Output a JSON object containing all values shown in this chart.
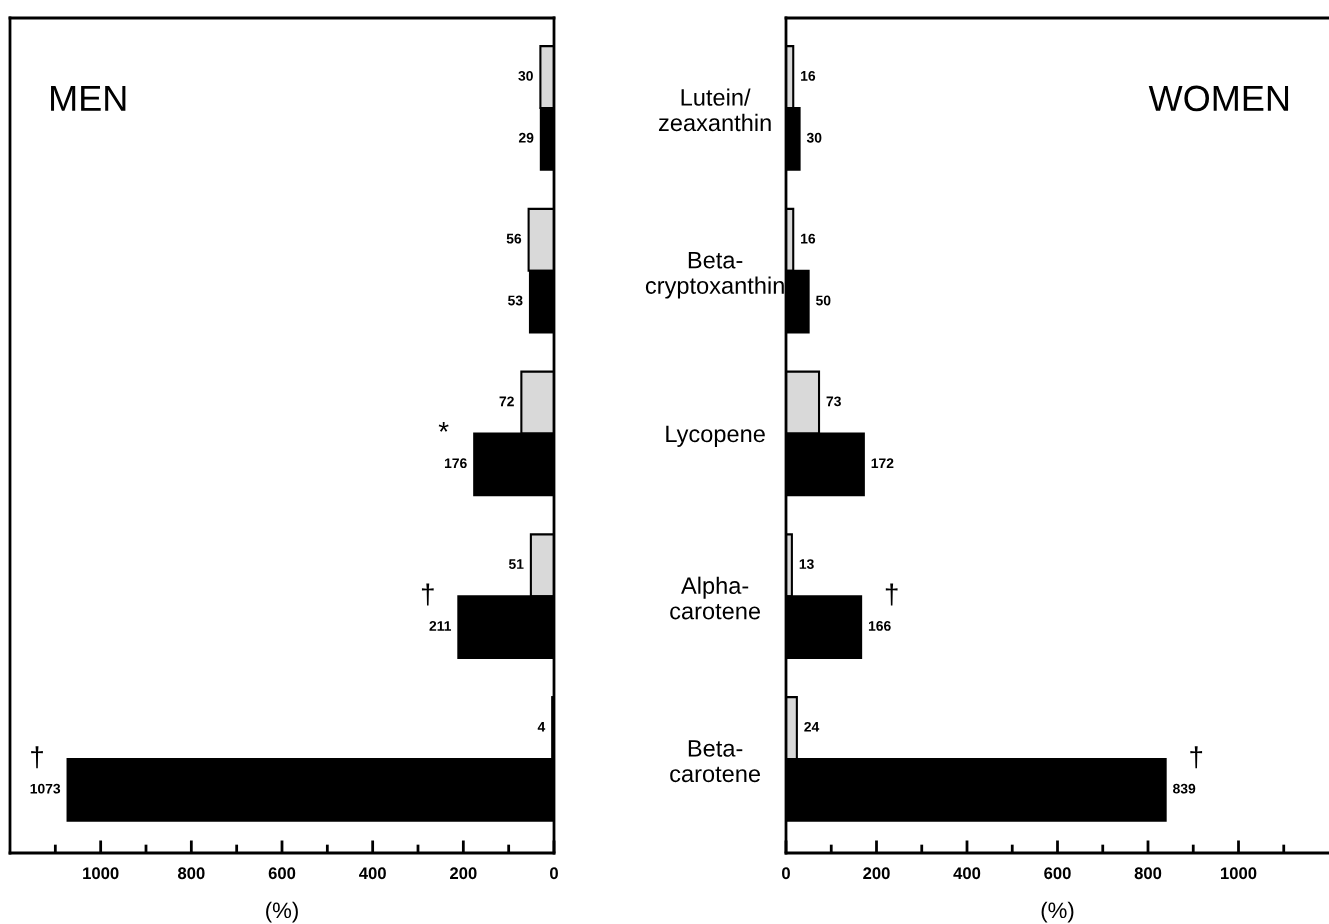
{
  "chart_data": [
    {
      "type": "bar",
      "orientation": "horizontal",
      "title": "MEN",
      "xlabel": "(%)",
      "categories": [
        "Lutein/\nzeaxanthin",
        "Beta-\ncryptoxanthin",
        "Lycopene",
        "Alpha-\ncarotene",
        "Beta-\ncarotene"
      ],
      "series": [
        {
          "color": "#d9d9d9",
          "values": [
            30,
            56,
            72,
            51,
            4
          ]
        },
        {
          "color": "#000000",
          "values": [
            29,
            53,
            176,
            211,
            1073
          ]
        }
      ],
      "data_labels": true,
      "xlim": [
        1200,
        0
      ],
      "xticks": [
        0,
        {
          "value": 100,
          "label": null
        },
        200,
        {
          "value": 300,
          "label": null
        },
        400,
        {
          "value": 500,
          "label": null
        },
        600,
        {
          "value": 700,
          "label": null
        },
        800,
        {
          "value": 900,
          "label": null
        },
        1000,
        {
          "value": 1100,
          "label": null
        }
      ],
      "annotations": [
        {
          "text": "*",
          "x": 176,
          "y": "Lycopene"
        },
        {
          "text": "†",
          "x": 211,
          "y": "Alpha-\ncarotene"
        },
        {
          "text": "†",
          "x": 1073,
          "y": "Beta-\ncarotene"
        }
      ],
      "grid": false,
      "legend": false
    },
    {
      "type": "bar",
      "orientation": "horizontal",
      "title": "WOMEN",
      "xlabel": "(%)",
      "categories": [
        "Lutein/\nzeaxanthin",
        "Beta-\ncryptoxanthin",
        "Lycopene",
        "Alpha-\ncarotene",
        "Beta-\ncarotene"
      ],
      "tick_labels": "x",
      "series": [
        {
          "color": "#d9d9d9",
          "values": [
            16,
            16,
            73,
            13,
            24
          ]
        },
        {
          "color": "#000000",
          "values": [
            30,
            50,
            172,
            166,
            839
          ]
        }
      ],
      "data_labels": true,
      "xlim": [
        0,
        1200
      ],
      "xticks": [
        0,
        {
          "value": 100,
          "label": null
        },
        200,
        {
          "value": 300,
          "label": null
        },
        400,
        {
          "value": 500,
          "label": null
        },
        600,
        {
          "value": 700,
          "label": null
        },
        800,
        {
          "value": 900,
          "label": null
        },
        1000,
        {
          "value": 1100,
          "label": null
        }
      ],
      "annotations": [
        {
          "text": "†",
          "x": 166,
          "y": "Alpha-\ncarotene"
        },
        {
          "text": "†",
          "x": 839,
          "y": "Beta-\ncarotene"
        }
      ],
      "grid": false,
      "legend": false
    }
  ]
}
